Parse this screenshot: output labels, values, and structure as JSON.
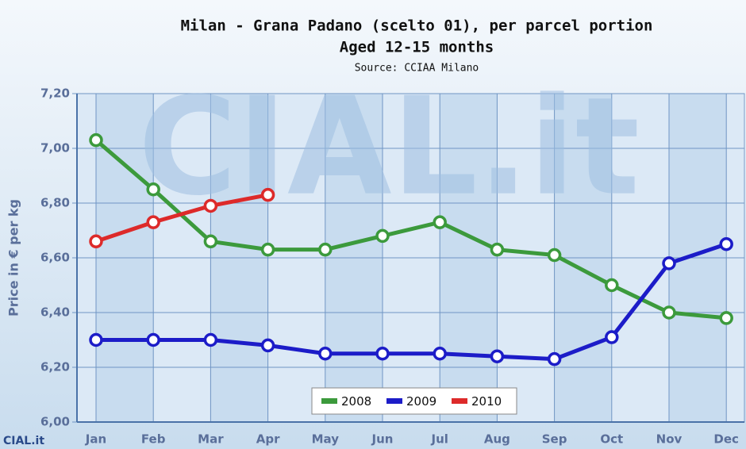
{
  "chart_data": {
    "type": "line",
    "title": "Milan - Grana Padano (scelto 01), per parcel portion",
    "subtitle": "Aged 12-15 months",
    "source": "Source: CCIAA Milano",
    "y_label": "Price in € per kg",
    "watermark": "CIAL.it",
    "categories": [
      "Jan",
      "Feb",
      "Mar",
      "Apr",
      "May",
      "Jun",
      "Jul",
      "Aug",
      "Sep",
      "Oct",
      "Nov",
      "Dec"
    ],
    "series": [
      {
        "name": "2008",
        "color": "#3c9a3c",
        "values": [
          7.03,
          6.85,
          6.66,
          6.63,
          6.63,
          6.68,
          6.73,
          6.63,
          6.61,
          6.5,
          6.4,
          6.38
        ]
      },
      {
        "name": "2009",
        "color": "#1c1cc8",
        "values": [
          6.3,
          6.3,
          6.3,
          6.28,
          6.25,
          6.25,
          6.25,
          6.24,
          6.23,
          6.31,
          6.58,
          6.65
        ]
      },
      {
        "name": "2010",
        "color": "#dd2a2a",
        "values": [
          6.66,
          6.73,
          6.79,
          6.83,
          null,
          null,
          null,
          null,
          null,
          null,
          null,
          null
        ]
      }
    ],
    "ylim": [
      6.0,
      7.2
    ],
    "yticks": [
      {
        "value": 6.0,
        "label": "6,00"
      },
      {
        "value": 6.2,
        "label": "6,20"
      },
      {
        "value": 6.4,
        "label": "6,40"
      },
      {
        "value": 6.6,
        "label": "6,60"
      },
      {
        "value": 6.8,
        "label": "6,80"
      },
      {
        "value": 7.0,
        "label": "7,00"
      },
      {
        "value": 7.2,
        "label": "7,20"
      }
    ],
    "grid": true,
    "legend": "bottom"
  }
}
